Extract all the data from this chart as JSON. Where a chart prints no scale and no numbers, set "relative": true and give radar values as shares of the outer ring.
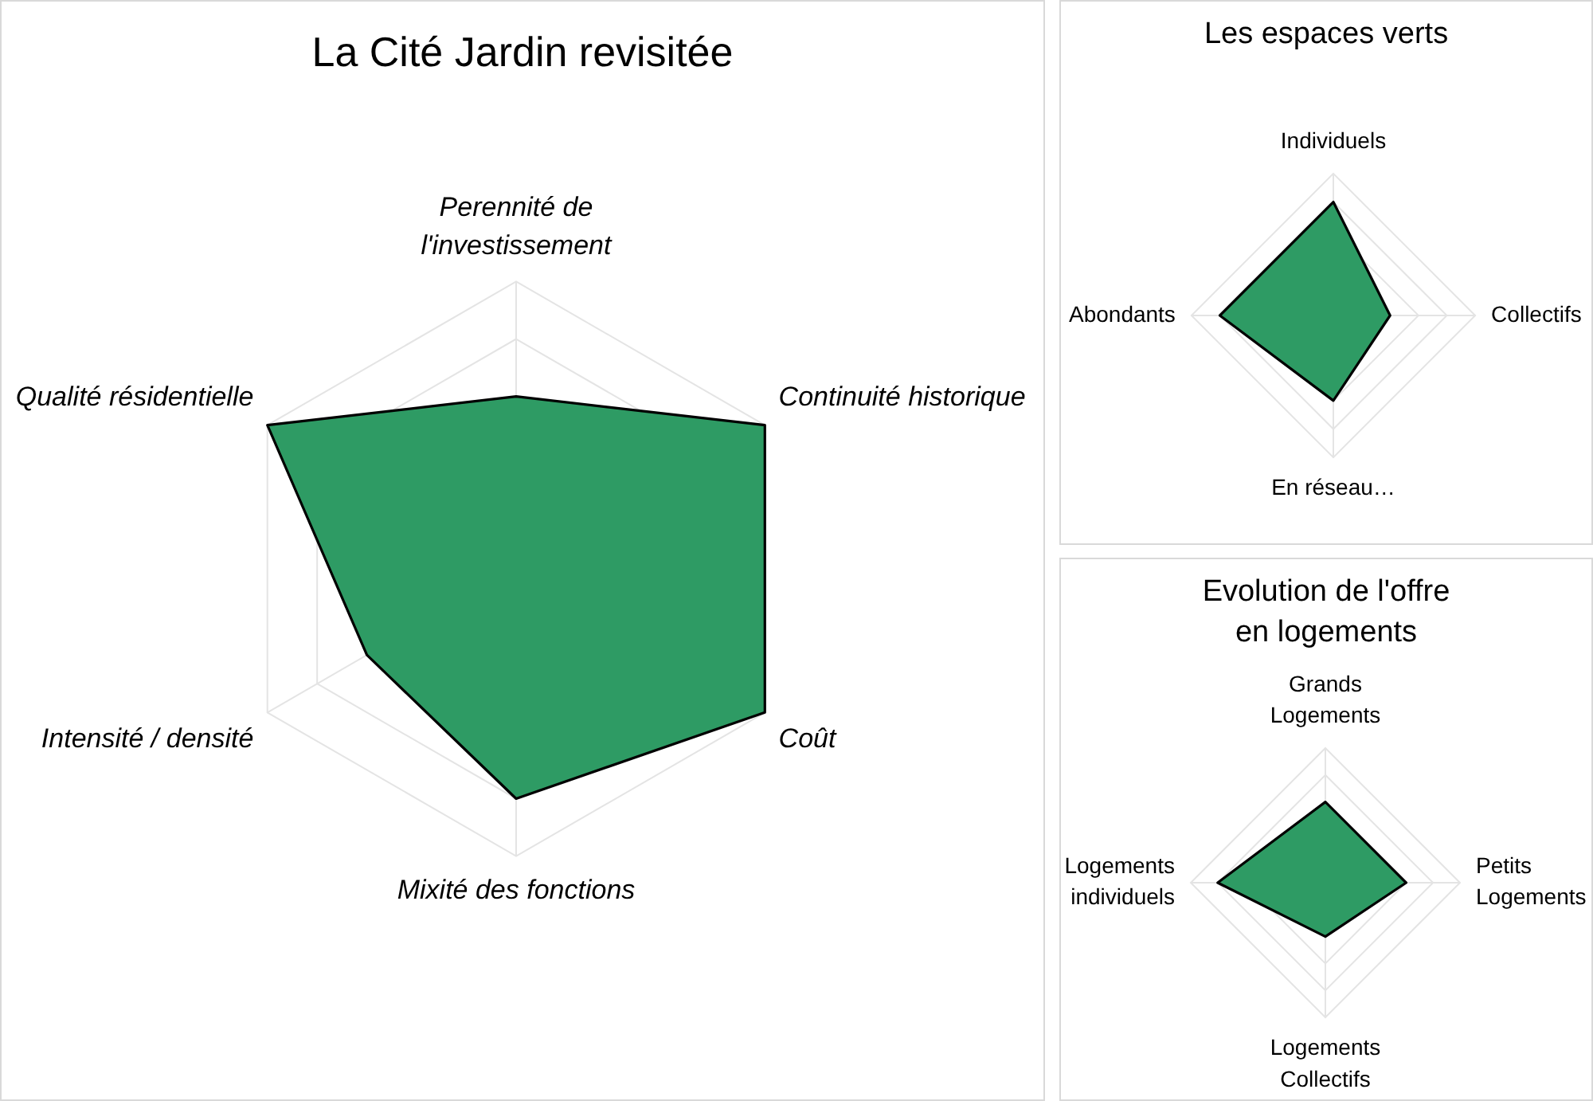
{
  "chart_data": [
    {
      "type": "radar",
      "title": "La Cité Jardin revisitée",
      "categories": [
        "Perennité de\nl'investissement",
        "Continuité historique",
        "Coût",
        "Mixité des fonctions",
        "Intensité / densité",
        "Qualité résidentielle"
      ],
      "series": [
        {
          "color": "#2e9b64",
          "values": [
            0.6,
            1,
            1,
            0.8,
            0.6,
            1
          ]
        }
      ],
      "relative": true,
      "grid": true
    },
    {
      "type": "radar",
      "title": "Les espaces verts",
      "categories": [
        "Individuels",
        "Collectifs",
        "En réseau…",
        "Abondants"
      ],
      "series": [
        {
          "color": "#2e9b64",
          "values": [
            0.8,
            0.4,
            0.6,
            0.8
          ]
        }
      ],
      "relative": true,
      "grid": true
    },
    {
      "type": "radar",
      "title": "Evolution de l'offre\nen logements",
      "categories": [
        "Grands\nLogements",
        "Petits\nLogements",
        "Logements\nCollectifs",
        "Logements\nindividuels"
      ],
      "series": [
        {
          "color": "#2e9b64",
          "values": [
            0.6,
            0.6,
            0.4,
            0.8
          ]
        }
      ],
      "relative": true,
      "grid": true
    }
  ]
}
